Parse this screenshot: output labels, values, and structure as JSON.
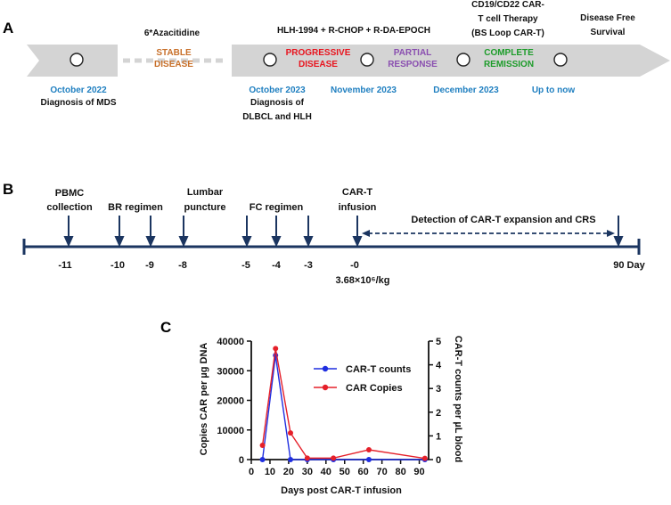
{
  "panelA": {
    "label": "A",
    "phases": [
      {
        "top": "6*Azacitidine",
        "status": [
          "STABLE",
          "DISEASE"
        ],
        "status_color": "#c8702a"
      },
      {
        "top": "HLH-1994 + R-CHOP + R-DA-EPOCH",
        "status": [
          "PROGRESSIVE",
          "DISEASE"
        ],
        "status_color": "#e8141e"
      },
      {
        "top": "",
        "status": [
          "PARTIAL",
          "RESPONSE"
        ],
        "status_color": "#8a4fb0"
      },
      {
        "top_lines": [
          "CD19/CD22 CAR-",
          "T cell Therapy",
          "(BS Loop CAR-T)"
        ],
        "status": [
          "COMPLETE",
          "REMISSION"
        ],
        "status_color": "#1d9c2a"
      },
      {
        "top_lines": [
          "Disease Free",
          "Survival"
        ]
      }
    ],
    "events": [
      {
        "date": "October 2022",
        "desc": [
          "Diagnosis of MDS"
        ]
      },
      {
        "date": "October 2023",
        "desc": [
          "Diagnosis of",
          "DLBCL and HLH"
        ]
      },
      {
        "date": "November 2023",
        "desc": []
      },
      {
        "date": "December 2023",
        "desc": []
      },
      {
        "date": "Up to now",
        "desc": []
      }
    ],
    "date_color": "#1f7fc0",
    "arrow_color": "#d4d4d4"
  },
  "panelB": {
    "label": "B",
    "steps": [
      {
        "lines": [
          "PBMC",
          "collection"
        ]
      },
      {
        "lines": [
          "BR regimen"
        ]
      },
      {
        "lines": [
          "Lumbar",
          "puncture"
        ]
      },
      {
        "lines": [
          "FC regimen"
        ]
      },
      {
        "lines": [
          "CAR-T",
          "infusion"
        ]
      }
    ],
    "days": [
      "-11",
      "-10",
      "-9",
      "-8",
      "-5",
      "-4",
      "-3",
      "-0",
      "90 Day"
    ],
    "detection_label": "Detection of CAR-T expansion and CRS",
    "dose": "3.68×10⁶/kg",
    "line_color": "#1b3560"
  },
  "panelC": {
    "label": "C",
    "chart_data": {
      "type": "line",
      "xlabel": "Days post CAR-T infusion",
      "ylabel_left": "Copies CAR per µg  DNA",
      "ylabel_right": "CAR-T counts per µL blood",
      "xlim": [
        0,
        95
      ],
      "xticks": [
        0,
        10,
        20,
        30,
        40,
        50,
        60,
        70,
        80,
        90
      ],
      "ylim_left": [
        0,
        40000
      ],
      "yticks_left": [
        0,
        10000,
        20000,
        30000,
        40000
      ],
      "ylim_right": [
        0,
        5
      ],
      "yticks_right": [
        0,
        1,
        2,
        3,
        4,
        5
      ],
      "legend_position": "right",
      "series": [
        {
          "name": "CAR-T counts",
          "axis": "right",
          "color": "#1f2ee0",
          "x": [
            6,
            13,
            21,
            30,
            44,
            63,
            93
          ],
          "y": [
            0,
            4.4,
            0,
            0,
            0,
            0,
            0
          ]
        },
        {
          "name": "CAR Copies",
          "axis": "left",
          "color": "#e5202a",
          "x": [
            6,
            13,
            21,
            30,
            44,
            63,
            93
          ],
          "y": [
            4800,
            37500,
            9000,
            500,
            500,
            3300,
            400
          ]
        }
      ]
    }
  }
}
